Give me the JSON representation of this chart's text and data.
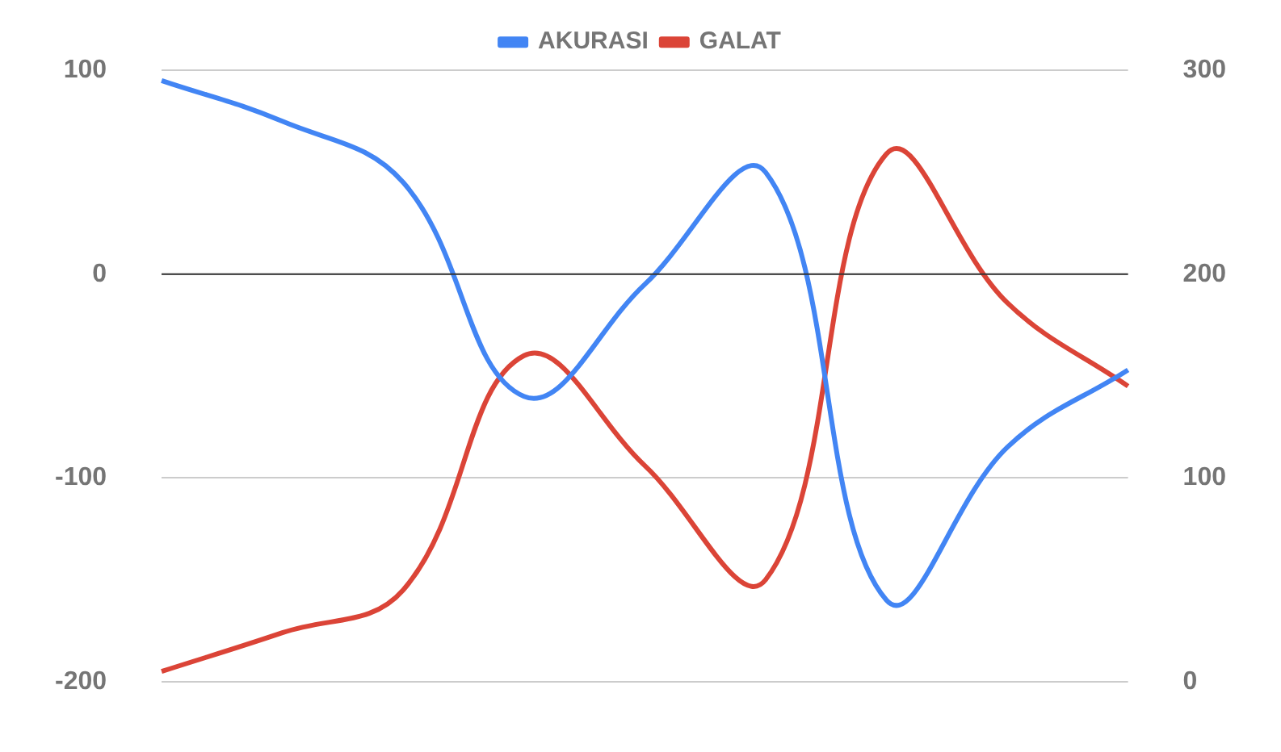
{
  "chart_data": {
    "type": "line",
    "categories": [
      null,
      null,
      null,
      null,
      null,
      null,
      null,
      null,
      null
    ],
    "series": [
      {
        "name": "AKURASI",
        "color": "#4285f4",
        "values": [
          95,
          75,
          45,
          -60,
          -5,
          50,
          -160,
          -85,
          -47
        ]
      },
      {
        "name": "GALAT",
        "color": "#db4437",
        "axis": "y2",
        "values": [
          5,
          24,
          45,
          160,
          106,
          50,
          259,
          186,
          145
        ]
      }
    ],
    "ylim": [
      -200,
      100
    ],
    "yticks": [
      -200,
      -100,
      0,
      100
    ],
    "y2lim": [
      0,
      300
    ],
    "y2ticks": [
      0,
      100,
      200,
      300
    ],
    "ref_lines": [
      {
        "axis": "y",
        "value": 0,
        "color": "#333333"
      }
    ],
    "grid": "y",
    "legend": "top",
    "marker": "none",
    "line_style": "solid"
  }
}
